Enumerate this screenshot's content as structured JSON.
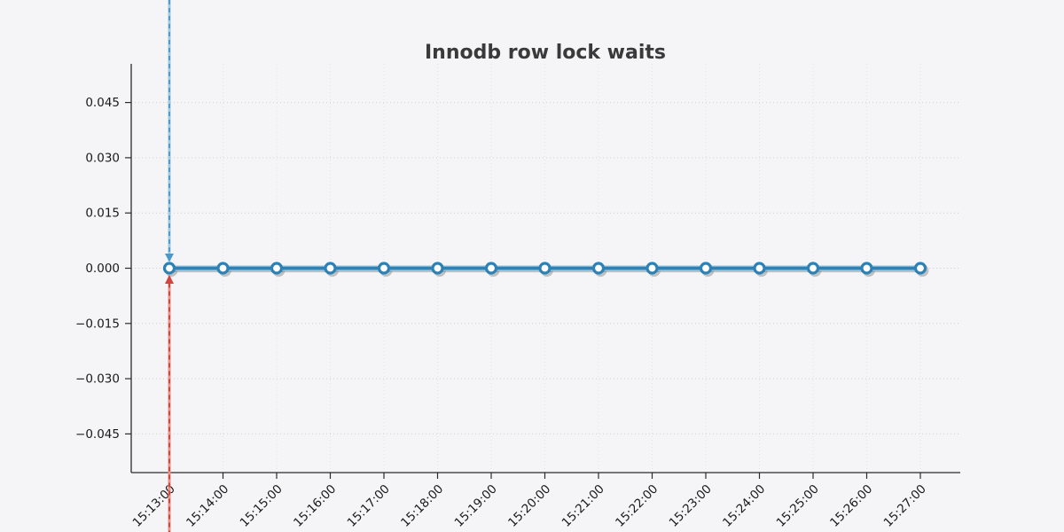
{
  "chart_data": {
    "type": "line",
    "title": "Innodb row lock waits",
    "x": [
      "15:13:00",
      "15:14:00",
      "15:15:00",
      "15:16:00",
      "15:17:00",
      "15:18:00",
      "15:19:00",
      "15:20:00",
      "15:21:00",
      "15:22:00",
      "15:23:00",
      "15:24:00",
      "15:25:00",
      "15:26:00",
      "15:27:00"
    ],
    "series": [
      {
        "name": "Innodb row lock waits",
        "values": [
          0.0,
          0.0,
          0.0,
          0.0,
          0.0,
          0.0,
          0.0,
          0.0,
          0.0,
          0.0,
          0.0,
          0.0,
          0.0,
          0.0,
          0.0
        ]
      }
    ],
    "xlabel": "",
    "ylabel": "",
    "ylim": [
      -0.0555,
      0.0555
    ],
    "yticks": [
      0.045,
      0.03,
      0.015,
      0.0,
      -0.015,
      -0.03,
      -0.045
    ],
    "ytick_labels": [
      "0.045",
      "0.030",
      "0.015",
      "0.000",
      "−0.015",
      "−0.030",
      "−0.045"
    ],
    "grid": true,
    "legend_position": "none",
    "annotations": [
      {
        "type": "vertical-arrow",
        "x": "15:13:00",
        "direction": "down",
        "from": "figure-top",
        "style": "dashed"
      },
      {
        "type": "vertical-arrow",
        "x": "15:13:00",
        "direction": "up",
        "from": "figure-bottom",
        "style": "dashed"
      }
    ],
    "colors": {
      "series_line": "#2e81b5",
      "series_line_halo": "#8fc3e0",
      "marker_fill": "#ffffff",
      "marker_ring": "#2e81b5",
      "shadow": "#6e6e6e",
      "arrow_down_light": "#9ecae1",
      "arrow_down_dash": "#3f8fc4",
      "arrow_down_head": "#4a99cc",
      "arrow_up_light": "#ef918b",
      "arrow_up_dash": "#c0392b",
      "arrow_up_head": "#cf4540",
      "grid_h": "#cfcfd3",
      "grid_v": "#e2e2e6",
      "spine": "#2b2b2b",
      "background": "#f5f4f6",
      "title": "#3a3a3a"
    }
  }
}
